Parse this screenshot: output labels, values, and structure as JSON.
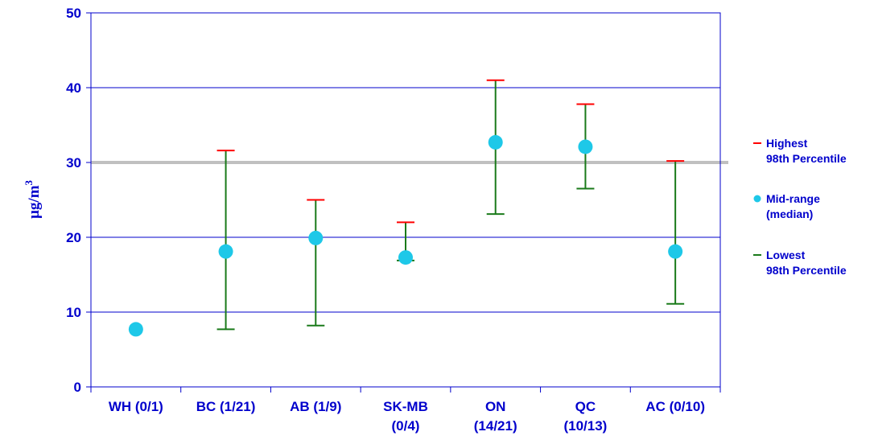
{
  "chart_data": {
    "type": "error-bar",
    "ylabel_base": "µg/m",
    "ylabel_sup": "3",
    "ylim": [
      0,
      50
    ],
    "yticks": [
      "0",
      "10",
      "20",
      "30",
      "40",
      "50"
    ],
    "reference_line": 30,
    "categories": [
      {
        "line1": "WH  (0/1)",
        "line2": ""
      },
      {
        "line1": "BC  (1/21)",
        "line2": ""
      },
      {
        "line1": "AB  (1/9)",
        "line2": ""
      },
      {
        "line1": "SK-MB",
        "line2": "(0/4)"
      },
      {
        "line1": "ON",
        "line2": "(14/21)"
      },
      {
        "line1": "QC",
        "line2": "(10/13)"
      },
      {
        "line1": "AC  (0/10)",
        "line2": ""
      }
    ],
    "series": [
      {
        "name": "Highest 98th Percentile",
        "values": [
          null,
          31.6,
          25.0,
          22.0,
          41.0,
          37.8,
          30.2
        ]
      },
      {
        "name": "Mid-range (median)",
        "values": [
          7.7,
          18.1,
          19.9,
          17.3,
          32.7,
          32.1,
          18.1
        ]
      },
      {
        "name": "Lowest 98th Percentile",
        "values": [
          null,
          7.7,
          8.2,
          16.9,
          23.1,
          26.5,
          11.1
        ]
      }
    ],
    "legend": {
      "position": "right",
      "items": [
        {
          "line1": "Highest",
          "line2": "98th  Percentile",
          "color": "#ff0000",
          "marker": "dash"
        },
        {
          "line1": "Mid-range",
          "line2": "(median)",
          "color": "#1ec8e8",
          "marker": "circle"
        },
        {
          "line1": "Lowest",
          "line2": "98th  Percentile",
          "color": "#1a7a1a",
          "marker": "dash"
        }
      ]
    },
    "colors": {
      "axis": "#0000cc",
      "grid": "#0000cc",
      "reference": "#c0c0c0",
      "high": "#ff0000",
      "median": "#1ec8e8",
      "low": "#1a7a1a",
      "range": "#1a7a1a"
    }
  }
}
